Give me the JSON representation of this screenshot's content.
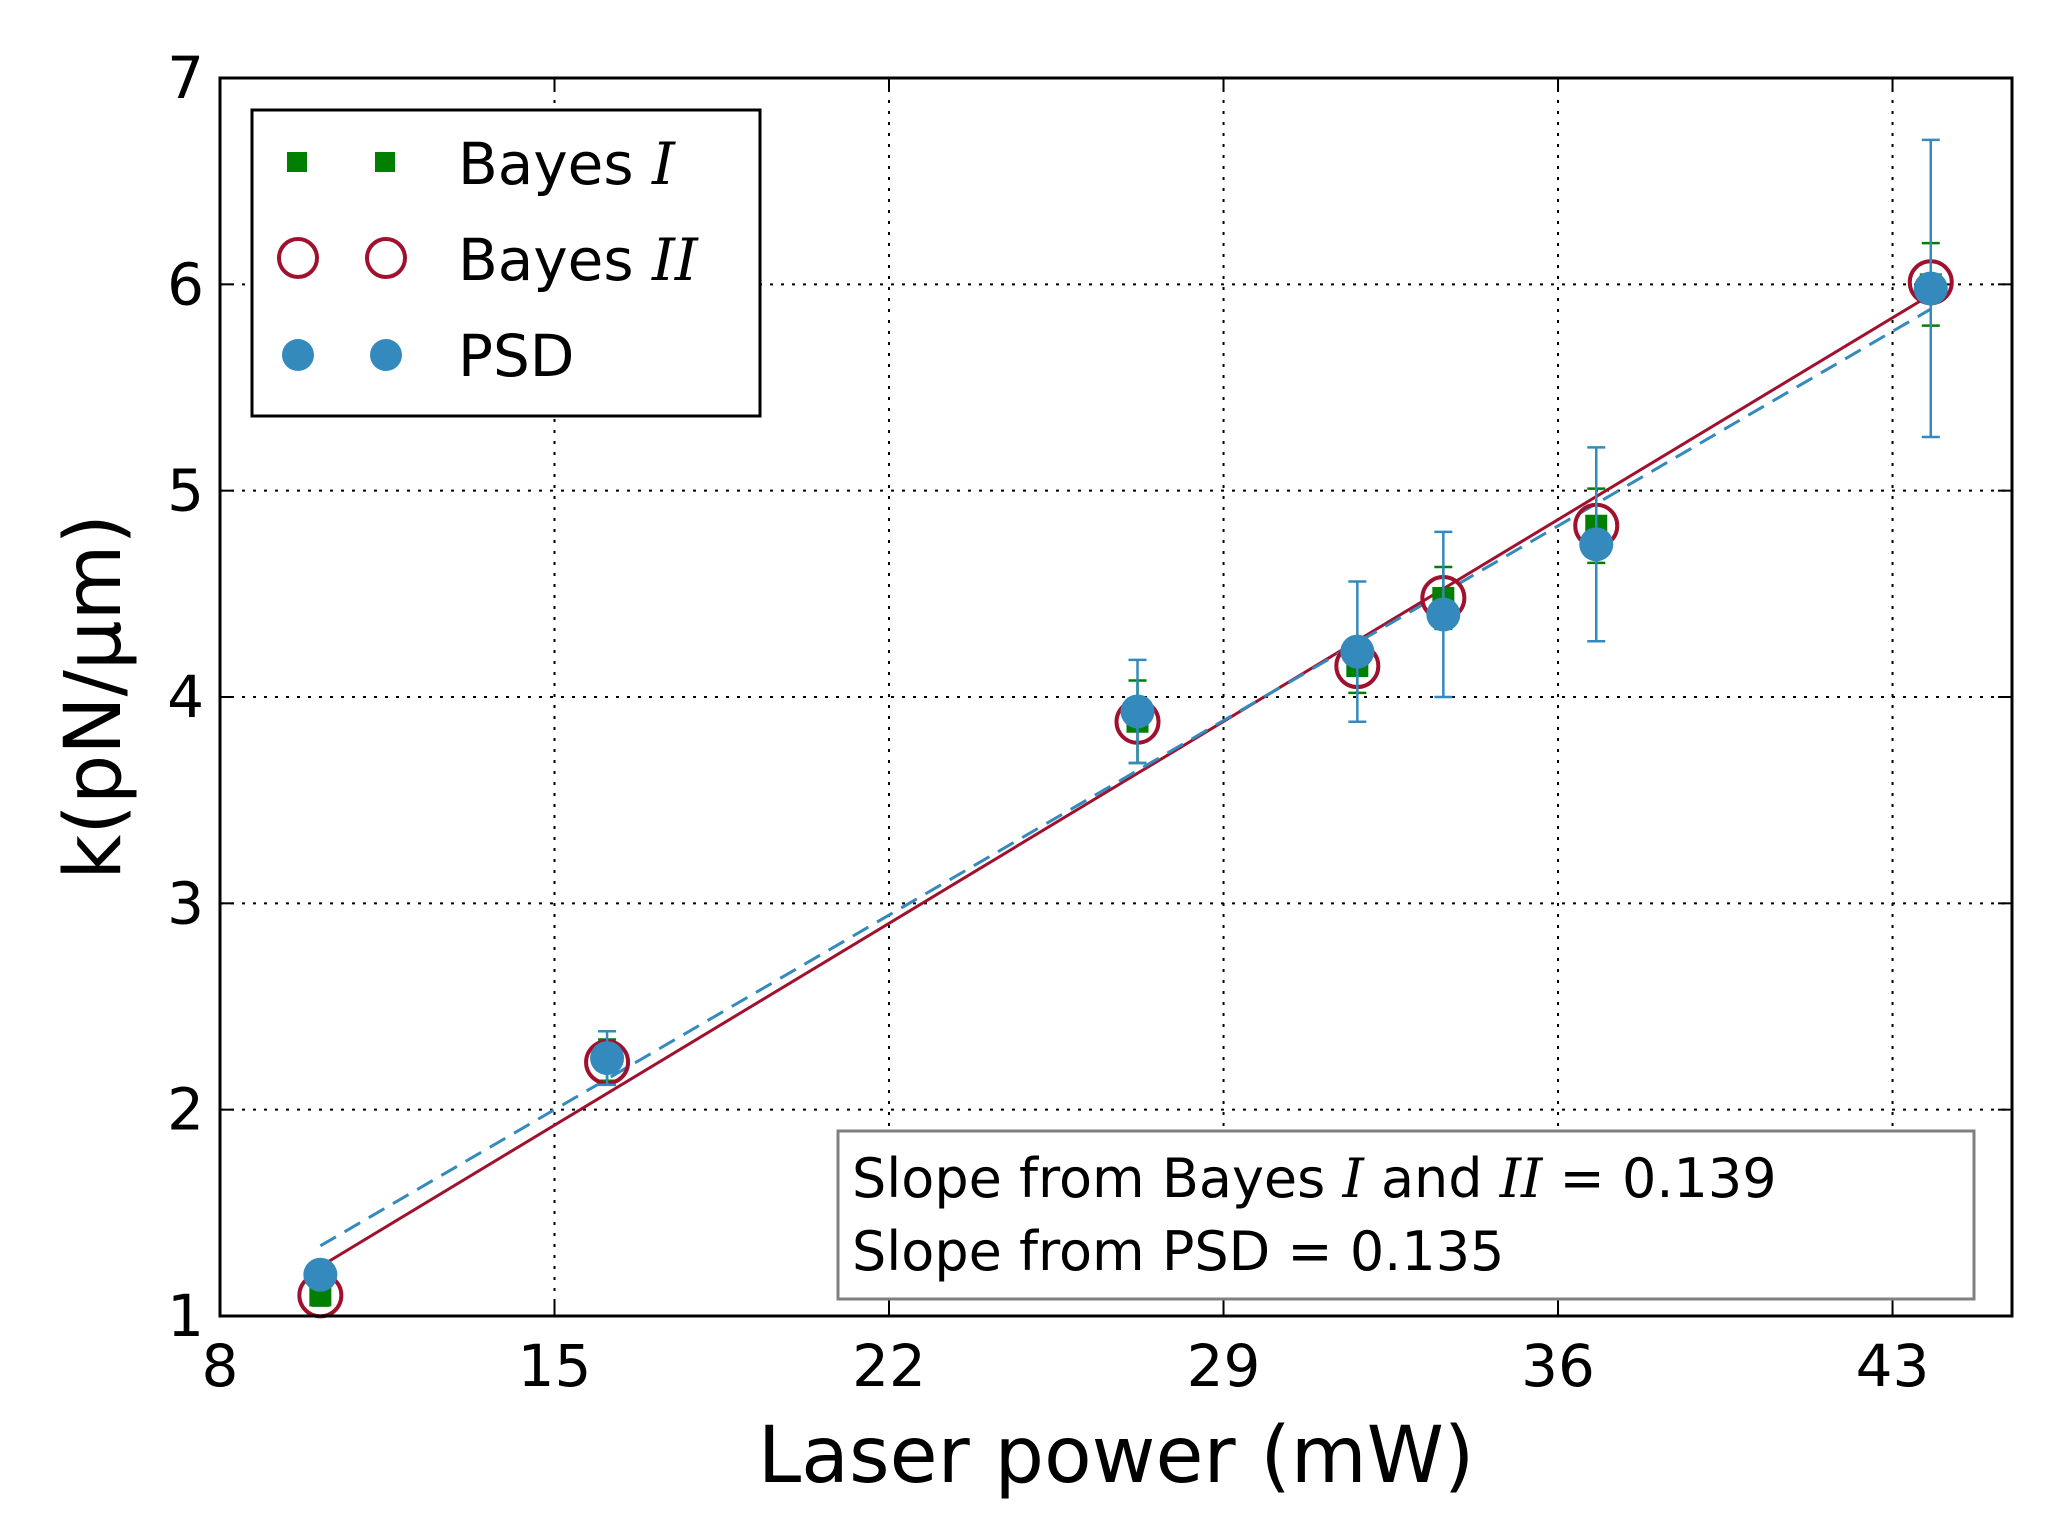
{
  "chart_data": {
    "type": "scatter",
    "xlabel": "Laser power (mW)",
    "ylabel": "k(pN/μm)",
    "xlim": [
      8,
      45.5
    ],
    "ylim": [
      1,
      7
    ],
    "x_ticks": [
      8,
      15,
      22,
      29,
      36,
      43
    ],
    "y_ticks": [
      1,
      2,
      3,
      4,
      5,
      6,
      7
    ],
    "grid": true,
    "legend_position": "top-left",
    "series": [
      {
        "name": "Bayes I",
        "name_prefix": "Bayes ",
        "name_math": "I",
        "marker": "square",
        "color": "#007f00",
        "x": [
          10.1,
          16.1,
          27.2,
          31.8,
          33.6,
          36.8,
          43.8
        ],
        "y": [
          1.1,
          2.24,
          3.88,
          4.15,
          4.48,
          4.83,
          6.0
        ],
        "err": [
          0.05,
          0.1,
          0.2,
          0.13,
          0.15,
          0.18,
          0.2
        ]
      },
      {
        "name": "Bayes II",
        "name_prefix": "Bayes ",
        "name_math": "II",
        "marker": "open-circle",
        "color": "#a0112e",
        "x": [
          10.1,
          16.1,
          27.2,
          31.8,
          33.6,
          36.8,
          43.8
        ],
        "y": [
          1.1,
          2.23,
          3.88,
          4.15,
          4.48,
          4.83,
          6.01
        ],
        "err": [
          0,
          0,
          0,
          0,
          0,
          0,
          0
        ]
      },
      {
        "name": "PSD",
        "name_prefix": "PSD",
        "name_math": "",
        "marker": "filled-circle",
        "color": "#348abd",
        "x": [
          10.1,
          16.1,
          27.2,
          31.8,
          33.6,
          36.8,
          43.8
        ],
        "y": [
          1.2,
          2.25,
          3.93,
          4.22,
          4.4,
          4.74,
          5.98
        ],
        "err": [
          0.05,
          0.13,
          0.25,
          0.34,
          0.4,
          0.47,
          0.72
        ]
      }
    ],
    "fit_lines": [
      {
        "name": "Bayes fit",
        "style": "solid",
        "color": "#a0112e",
        "x": [
          10.1,
          43.8
        ],
        "y": [
          1.24,
          5.95
        ]
      },
      {
        "name": "PSD fit",
        "style": "dashed",
        "color": "#348abd",
        "x": [
          10.1,
          43.8
        ],
        "y": [
          1.34,
          5.88
        ]
      }
    ],
    "annotation": {
      "line1_prefix": "Slope from Bayes ",
      "line1_math1": "I",
      "line1_mid": " and ",
      "line1_math2": "II",
      "line1_suffix": " = 0.139",
      "line2": "Slope from PSD = 0.135"
    }
  }
}
